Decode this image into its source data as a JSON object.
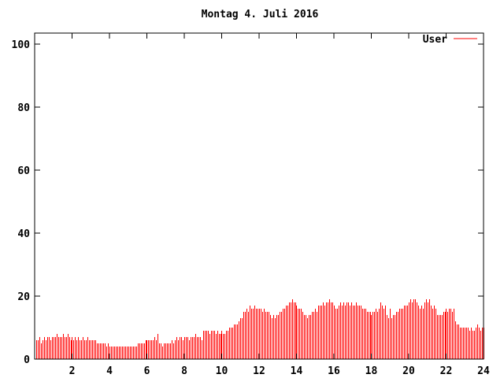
{
  "page": {
    "background": "#ffffff",
    "foreground": "#000000"
  },
  "chart_data": {
    "type": "bar",
    "style": "impulses",
    "title": "Montag 4. Juli 2016",
    "xlabel": "",
    "ylabel": "",
    "xlim": [
      0,
      24
    ],
    "ylim": [
      0,
      103.5
    ],
    "xticks": [
      2,
      4,
      6,
      8,
      10,
      12,
      14,
      16,
      18,
      20,
      22,
      24
    ],
    "yticks": [
      0,
      20,
      40,
      60,
      80,
      100
    ],
    "grid": false,
    "border": true,
    "legend_position": "top-right",
    "x_unit": "hour-of-day",
    "x_hours_start": 0.0833333,
    "x_hours_step": 0.0833333,
    "series": [
      {
        "name": "User",
        "color": "#ff0000",
        "values": [
          6,
          6,
          7,
          5,
          6,
          7,
          6,
          7,
          7,
          6,
          7,
          7,
          7,
          8,
          7,
          7,
          7,
          8,
          7,
          7,
          8,
          7,
          6,
          7,
          6,
          7,
          6,
          7,
          6,
          6,
          7,
          6,
          6,
          7,
          6,
          6,
          6,
          6,
          6,
          5,
          5,
          5,
          5,
          5,
          5,
          4,
          5,
          4,
          4,
          4,
          4,
          4,
          4,
          4,
          4,
          4,
          4,
          4,
          4,
          4,
          4,
          4,
          4,
          4,
          4,
          5,
          5,
          5,
          5,
          5,
          6,
          6,
          6,
          6,
          6,
          6,
          7,
          6,
          8,
          5,
          5,
          4,
          5,
          5,
          5,
          5,
          5,
          6,
          5,
          6,
          7,
          6,
          7,
          7,
          6,
          7,
          7,
          7,
          6,
          7,
          7,
          7,
          8,
          7,
          7,
          7,
          6,
          9,
          9,
          9,
          9,
          8,
          9,
          9,
          9,
          8,
          9,
          8,
          8,
          9,
          8,
          8,
          9,
          9,
          10,
          10,
          10,
          11,
          11,
          11,
          12,
          13,
          13,
          15,
          15,
          16,
          15,
          17,
          16,
          16,
          17,
          16,
          16,
          16,
          16,
          15,
          16,
          15,
          15,
          15,
          14,
          13,
          14,
          13,
          14,
          14,
          15,
          15,
          16,
          16,
          17,
          17,
          18,
          18,
          19,
          18,
          18,
          17,
          16,
          16,
          16,
          15,
          14,
          14,
          13,
          14,
          14,
          15,
          15,
          16,
          15,
          17,
          17,
          17,
          18,
          17,
          18,
          18,
          19,
          18,
          18,
          17,
          16,
          16,
          17,
          18,
          17,
          18,
          17,
          18,
          18,
          17,
          18,
          17,
          17,
          18,
          17,
          17,
          17,
          16,
          16,
          16,
          15,
          15,
          15,
          14,
          15,
          15,
          16,
          15,
          16,
          18,
          17,
          16,
          17,
          14,
          13,
          16,
          13,
          14,
          14,
          15,
          15,
          16,
          16,
          16,
          17,
          17,
          17,
          18,
          19,
          18,
          19,
          19,
          18,
          17,
          16,
          17,
          16,
          18,
          19,
          18,
          19,
          17,
          16,
          17,
          16,
          14,
          14,
          14,
          14,
          15,
          15,
          16,
          15,
          16,
          16,
          15,
          16,
          12,
          11,
          11,
          10,
          10,
          10,
          10,
          10,
          10,
          9,
          10,
          9,
          9,
          10,
          11,
          10,
          9,
          10,
          10
        ]
      }
    ]
  }
}
